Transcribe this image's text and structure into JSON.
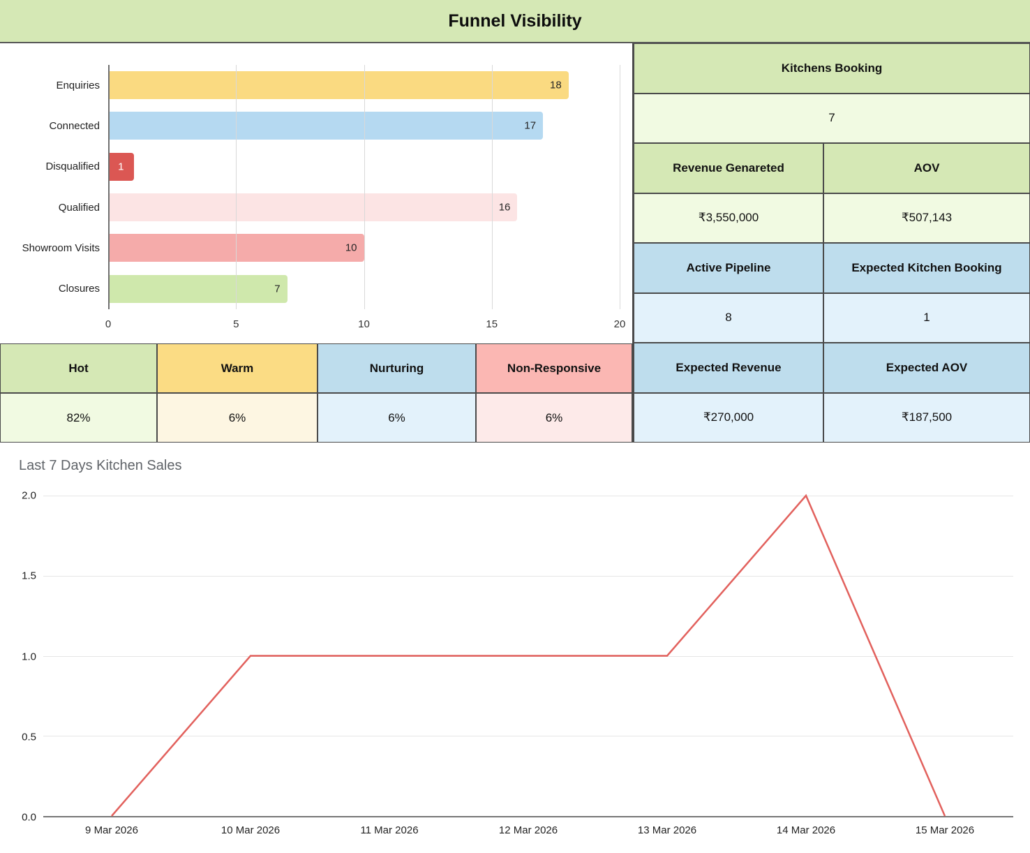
{
  "header": {
    "title": "Funnel Visibility"
  },
  "chart_data": [
    {
      "type": "bar",
      "orientation": "horizontal",
      "title": "Funnel Visibility",
      "categories": [
        "Enquiries",
        "Connected",
        "Disqualified",
        "Qualified",
        "Showroom Visits",
        "Closures"
      ],
      "values": [
        18,
        17,
        1,
        16,
        10,
        7
      ],
      "bar_colors": [
        "#fada81",
        "#b5d9f1",
        "#db5753",
        "#fce4e4",
        "#f5abaa",
        "#cfe8ac"
      ],
      "xlabel": "",
      "ylabel": "",
      "xlim": [
        0,
        20
      ],
      "x_ticks": [
        0,
        5,
        10,
        15,
        20
      ],
      "grid": true,
      "legend": "none"
    },
    {
      "type": "line",
      "title": "Last 7 Days Kitchen Sales",
      "x": [
        "9 Mar 2026",
        "10 Mar 2026",
        "11 Mar 2026",
        "12 Mar 2026",
        "13 Mar 2026",
        "14 Mar 2026",
        "15 Mar 2026"
      ],
      "values": [
        0,
        1,
        1,
        1,
        1,
        2,
        0
      ],
      "xlabel": "",
      "ylabel": "",
      "ylim": [
        0,
        2
      ],
      "y_ticks": [
        0,
        0.5,
        1,
        1.5,
        2
      ],
      "line_color": "#e2615d",
      "grid": true,
      "legend": "none"
    }
  ],
  "kitchens_table": {
    "title": "Kitchens Booking",
    "booking_value": "7",
    "rows": [
      {
        "header_left": "Revenue Genareted",
        "header_right": "AOV",
        "value_left": "₹3,550,000",
        "value_right": "₹507,143"
      },
      {
        "header_left": "Active Pipeline",
        "header_right": "Expected Kitchen Booking",
        "value_left": "8",
        "value_right": "1"
      },
      {
        "header_left": "Expected Revenue",
        "header_right": "Expected AOV",
        "value_left": "₹270,000",
        "value_right": "₹187,500"
      }
    ]
  },
  "segments_table": {
    "columns": [
      {
        "label": "Hot",
        "value": "82%"
      },
      {
        "label": "Warm",
        "value": "6%"
      },
      {
        "label": "Nurturing",
        "value": "6%"
      },
      {
        "label": "Non-Responsive",
        "value": "6%"
      }
    ]
  },
  "colors": {
    "band_green": "#d5e8b5",
    "light_green": "#f1fae2",
    "header_blue": "#bedded",
    "light_blue": "#e3f2fb",
    "header_yellow": "#fbdc84",
    "light_yellow": "#fdf6e2",
    "header_pink": "#fbb7b3",
    "light_pink": "#fdeae9",
    "border": "#4a4a4a",
    "line_red": "#e2615d"
  }
}
